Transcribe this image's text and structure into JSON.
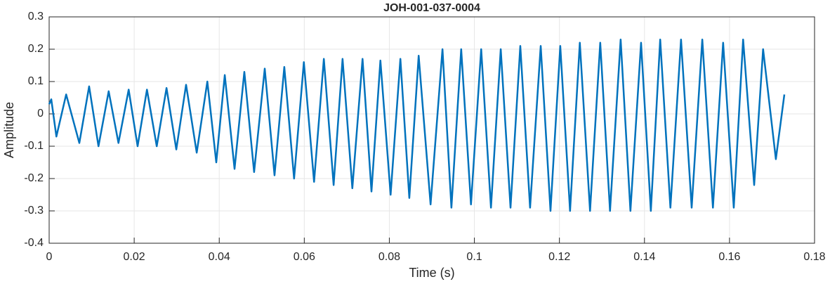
{
  "chart_data": {
    "type": "line",
    "title": "JOH-001-037-0004",
    "xlabel": "Time (s)",
    "ylabel": "Amplitude",
    "xlim": [
      0,
      0.18
    ],
    "xticks": [
      0,
      0.02,
      0.04,
      0.06,
      0.08,
      0.1,
      0.12,
      0.14,
      0.16,
      0.18
    ],
    "ylim": [
      -0.4,
      0.3
    ],
    "yticks": [
      -0.4,
      -0.3,
      -0.2,
      -0.1,
      0,
      0.1,
      0.2,
      0.3
    ],
    "grid": true,
    "x": [
      0,
      0.0005,
      0.0017,
      0.004,
      0.0071,
      0.0094,
      0.0116,
      0.014,
      0.0163,
      0.0187,
      0.0208,
      0.023,
      0.0253,
      0.0276,
      0.0299,
      0.0322,
      0.0347,
      0.0372,
      0.0393,
      0.0413,
      0.0436,
      0.0459,
      0.0482,
      0.0507,
      0.053,
      0.0553,
      0.0576,
      0.0599,
      0.0623,
      0.0646,
      0.0669,
      0.069,
      0.0713,
      0.0737,
      0.0758,
      0.0779,
      0.0803,
      0.0826,
      0.0847,
      0.0869,
      0.0897,
      0.0925,
      0.0946,
      0.0969,
      0.0992,
      0.1016,
      0.1039,
      0.1062,
      0.1085,
      0.1108,
      0.1131,
      0.1156,
      0.1179,
      0.1202,
      0.1225,
      0.1248,
      0.1272,
      0.1296,
      0.1319,
      0.1344,
      0.1367,
      0.1392,
      0.1415,
      0.1437,
      0.1461,
      0.1486,
      0.1511,
      0.1536,
      0.1561,
      0.1585,
      0.161,
      0.1632,
      0.1658,
      0.1679,
      0.1709,
      0.1729
    ],
    "series": [
      {
        "color": "#0072bd",
        "values": [
          0.03,
          0.045,
          -0.07,
          0.06,
          -0.09,
          0.085,
          -0.1,
          0.07,
          -0.09,
          0.075,
          -0.1,
          0.075,
          -0.1,
          0.08,
          -0.11,
          0.09,
          -0.12,
          0.1,
          -0.15,
          0.12,
          -0.17,
          0.13,
          -0.18,
          0.14,
          -0.19,
          0.145,
          -0.2,
          0.16,
          -0.21,
          0.17,
          -0.22,
          0.17,
          -0.23,
          0.17,
          -0.24,
          0.165,
          -0.25,
          0.17,
          -0.26,
          0.18,
          -0.28,
          0.2,
          -0.29,
          0.2,
          -0.28,
          0.2,
          -0.29,
          0.2,
          -0.29,
          0.21,
          -0.29,
          0.21,
          -0.3,
          0.21,
          -0.3,
          0.22,
          -0.3,
          0.22,
          -0.3,
          0.23,
          -0.3,
          0.22,
          -0.3,
          0.23,
          -0.29,
          0.23,
          -0.29,
          0.23,
          -0.29,
          0.22,
          -0.29,
          0.23,
          -0.22,
          0.2,
          -0.14,
          0.06
        ]
      }
    ]
  }
}
